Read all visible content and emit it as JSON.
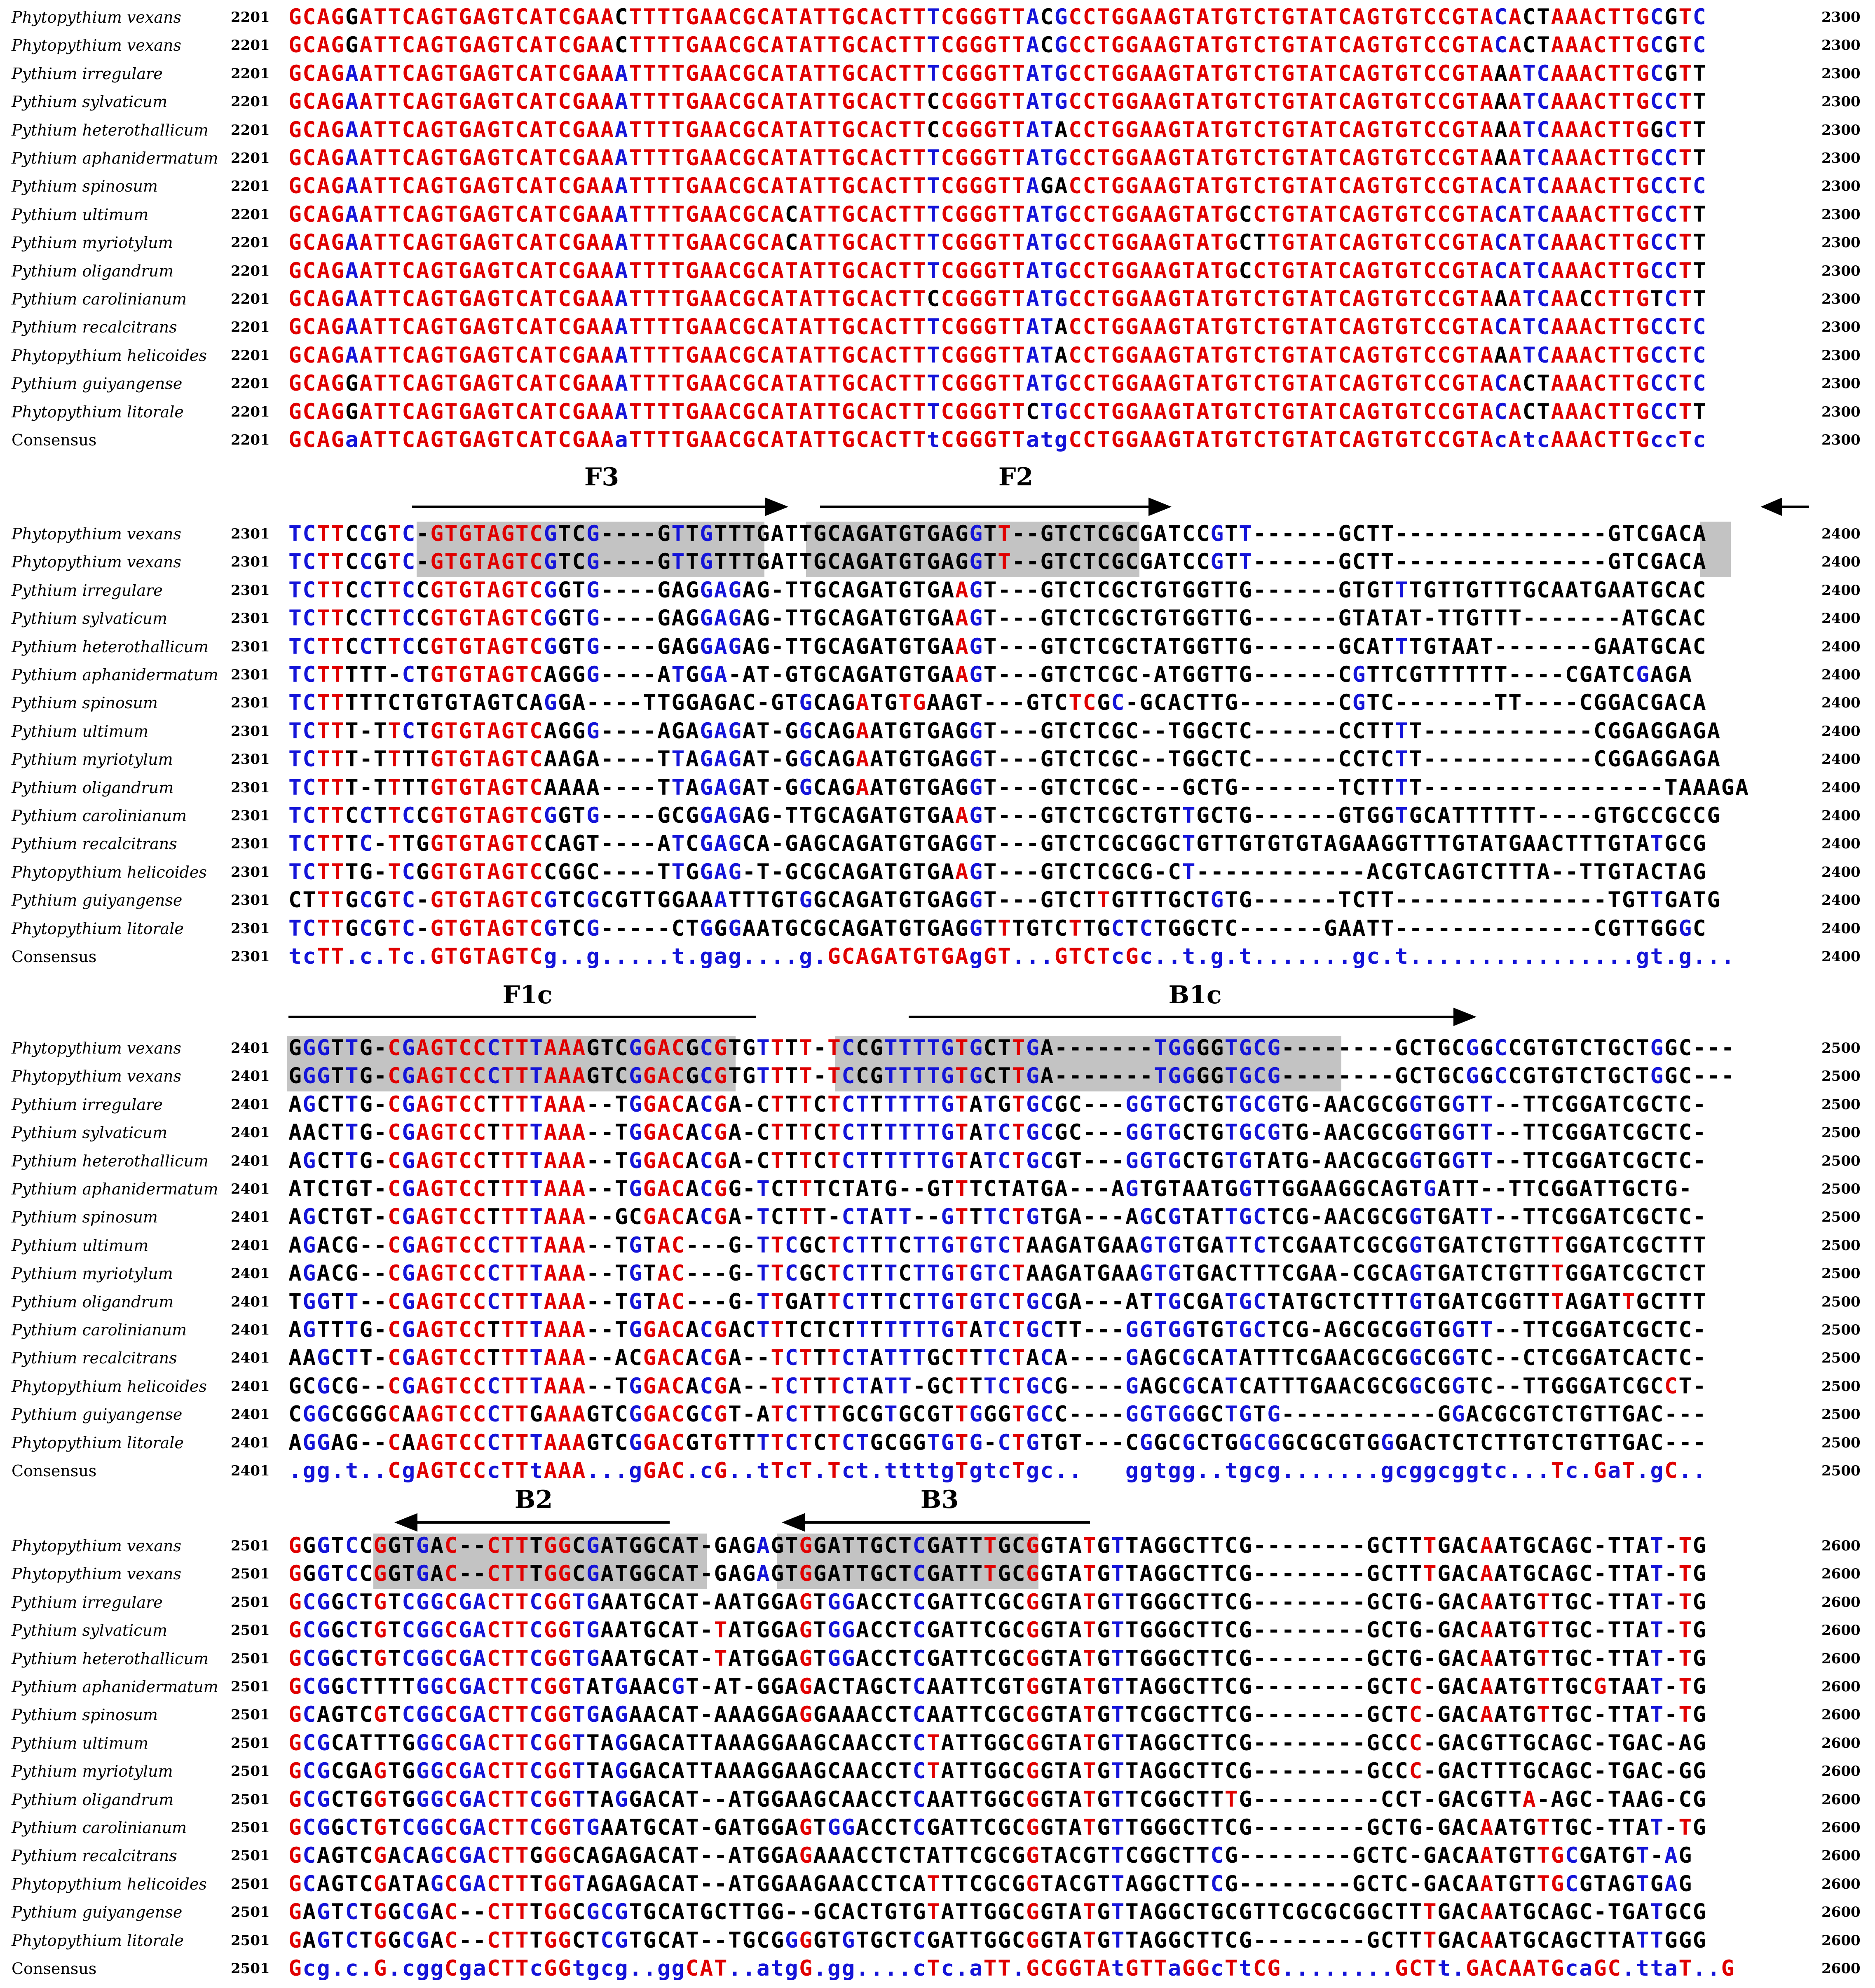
{
  "colors": {
    "red": "#e00000",
    "blue": "#1414d8",
    "black": "#000000",
    "highlight": "#c3c3c3"
  },
  "blocks": [
    {
      "start": "2201",
      "end": "2300",
      "rows": [
        {
          "name": "Phytopythium vexans",
          "seq": "GCAGGATTCAGTGAGTCATCGAACTTTTGAACGCATATTGCACTTTCGGGTTACGCCTGGAAGTATGTCTGTATCAGTGTCCGTACACTAAACTTGCGTC"
        },
        {
          "name": "Phytopythium vexans",
          "seq": "GCAGGATTCAGTGAGTCATCGAACTTTTGAACGCATATTGCACTTTCGGGTTACGCCTGGAAGTATGTCTGTATCAGTGTCCGTACACTAAACTTGCGTC"
        },
        {
          "name": "Pythium irregulare",
          "seq": "GCAGAATTCAGTGAGTCATCGAAATTTTGAACGCATATTGCACTTTCGGGTTATGCCTGGAAGTATGTCTGTATCAGTGTCCGTAAATCAAACTTGCGTT"
        },
        {
          "name": "Pythium sylvaticum",
          "seq": "GCAGAATTCAGTGAGTCATCGAAATTTTGAACGCATATTGCACTTCCGGGTTATGCCTGGAAGTATGTCTGTATCAGTGTCCGTAAATCAAACTTGCCTT"
        },
        {
          "name": "Pythium heterothallicum",
          "seq": "GCAGAATTCAGTGAGTCATCGAAATTTTGAACGCATATTGCACTTCCGGGTTATACCTGGAAGTATGTCTGTATCAGTGTCCGTAAATCAAACTTGGCTT"
        },
        {
          "name": "Pythium aphanidermatum",
          "seq": "GCAGAATTCAGTGAGTCATCGAAATTTTGAACGCATATTGCACTTTCGGGTTATGCCTGGAAGTATGTCTGTATCAGTGTCCGTAAATCAAACTTGCCTT"
        },
        {
          "name": "Pythium spinosum",
          "seq": "GCAGAATTCAGTGAGTCATCGAAATTTTGAACGCATATTGCACTTTCGGGTTAGACCTGGAAGTATGTCTGTATCAGTGTCCGTACATCAAACTTGCCTC"
        },
        {
          "name": "Pythium ultimum",
          "seq": "GCAGAATTCAGTGAGTCATCGAAATTTTGAACGCACATTGCACTTTCGGGTTATGCCTGGAAGTATGCCTGTATCAGTGTCCGTACATCAAACTTGCCTT"
        },
        {
          "name": "Pythium myriotylum",
          "seq": "GCAGAATTCAGTGAGTCATCGAAATTTTGAACGCACATTGCACTTTCGGGTTATGCCTGGAAGTATGCTTGTATCAGTGTCCGTACATCAAACTTGCCTT"
        },
        {
          "name": "Pythium oligandrum",
          "seq": "GCAGAATTCAGTGAGTCATCGAAATTTTGAACGCATATTGCACTTTCGGGTTATGCCTGGAAGTATGCCTGTATCAGTGTCCGTACATCAAACTTGCCTT"
        },
        {
          "name": "Pythium carolinianum",
          "seq": "GCAGAATTCAGTGAGTCATCGAAATTTTGAACGCATATTGCACTTCCGGGTTATGCCTGGAAGTATGTCTGTATCAGTGTCCGTAAATCAACCTTGTCTT"
        },
        {
          "name": "Pythium recalcitrans",
          "seq": "GCAGAATTCAGTGAGTCATCGAAATTTTGAACGCATATTGCACTTTCGGGTTATACCTGGAAGTATGTCTGTATCAGTGTCCGTACATCAAACTTGCCTC"
        },
        {
          "name": "Phytopythium helicoides",
          "seq": "GCAGAATTCAGTGAGTCATCGAAATTTTGAACGCATATTGCACTTTCGGGTTATACCTGGAAGTATGTCTGTATCAGTGTCCGTAAATCAAACTTGCCTC"
        },
        {
          "name": "Pythium guiyangense",
          "seq": "GCAGGATTCAGTGAGTCATCGAAATTTTGAACGCATATTGCACTTTCGGGTTATGCCTGGAAGTATGTCTGTATCAGTGTCCGTACACTAAACTTGCCTC"
        },
        {
          "name": "Phytopythium litorale",
          "seq": "GCAGGATTCAGTGAGTCATCGAAATTTTGAACGCATATTGCACTTTCGGGTTCTGCCTGGAAGTATGTCTGTATCAGTGTCCGTACACTAAACTTGCCTT"
        },
        {
          "name": "Consensus",
          "seq": "GCAGaATTCAGTGAGTCATCGAAaTTTTGAACGCATATTGCACTTtCGGGTTatgCCTGGAAGTATGTCTGTATCAGTGTCCGTAcAtcAAACTTGccTc"
        }
      ]
    },
    {
      "start": "2301",
      "end": "2400",
      "rows": [
        {
          "name": "Phytopythium vexans",
          "seq": "TCTTCCGTC-GTGTAGTCGTCG----GTTGTTTGATTGCAGATGTGAGGTT--GTCTCGCGATCCGTT------GCTT---------------GTCGACA"
        },
        {
          "name": "Phytopythium vexans",
          "seq": "TCTTCCGTC-GTGTAGTCGTCG----GTTGTTTGATTGCAGATGTGAGGTT--GTCTCGCGATCCGTT------GCTT---------------GTCGACA"
        },
        {
          "name": "Pythium irregulare",
          "seq": "TCTTCCTTCCGTGTAGTCGGTG----GAGGAGAG-TTGCAGATGTGAAGT---GTCTCGCTGTGGTTG------GTGTTTGTTGTTTGCAATGAATGCAC"
        },
        {
          "name": "Pythium sylvaticum",
          "seq": "TCTTCCTTCCGTGTAGTCGGTG----GAGGAGAG-TTGCAGATGTGAAGT---GTCTCGCTGTGGTTG------GTATAT-TTGTTT-------ATGCAC"
        },
        {
          "name": "Pythium heterothallicum",
          "seq": "TCTTCCTTCCGTGTAGTCGGTG----GAGGAGAG-TTGCAGATGTGAAGT---GTCTCGCTATGGTTG------GCATTTGTAAT-------GAATGCAC"
        },
        {
          "name": "Pythium aphanidermatum",
          "seq": "TCTTTTT-CTGTGTAGTCAGGG----ATGGA-AT-GTGCAGATGTGAAGT---GTCTCGC-ATGGTTG------CGTTCGTTTTTT----CGATCGAGA"
        },
        {
          "name": "Pythium spinosum",
          "seq": "TCTTTTTCTGTGTAGTCAGGA----TTGGAGAC-GTGCAGATGTGAAGT---GTCTCGC-GCACTTG-------CGTC-------TT----CGGACGACA"
        },
        {
          "name": "Pythium ultimum",
          "seq": "TCTTT-TTCTGTGTAGTCAGGG----AGAGAGAT-GGCAGAATGTGAGGT---GTCTCGC--TGGCTC------CCTTTT------------CGGAGGAGA"
        },
        {
          "name": "Pythium myriotylum",
          "seq": "TCTTT-TTTTGTGTAGTCAAGA----TTAGAGAT-GGCAGAATGTGAGGT---GTCTCGC--TGGCTC------CCTCTT------------CGGAGGAGA"
        },
        {
          "name": "Pythium oligandrum",
          "seq": "TCTTT-TTTTGTGTAGTCAAAA----TTAGAGAT-GGCAGAATGTGAGGT---GTCTCGC---GCTG-------TCTTTT-----------------TAAAGA"
        },
        {
          "name": "Pythium carolinianum",
          "seq": "TCTTCCTTCCGTGTAGTCGGTG----GCGGAGAG-TTGCAGATGTGAAGT---GTCTCGCTGTTGCTG------GTGGTGCATTTTTT----GTGCCGCCG"
        },
        {
          "name": "Pythium recalcitrans",
          "seq": "TCTTTC-TTGGTGTAGTCCAGT----ATCGAGCA-GAGCAGATGTGAGGT---GTCTCGCGGCTGTTGTGTGTAGAAGGTTTGTATGAACTTTGTATGCG"
        },
        {
          "name": "Phytopythium helicoides",
          "seq": "TCTTTG-TCGGTGTAGTCCGGC----TTGGAG-T-GCGCAGATGTGAAGT---GTCTCGCG-CT------------ACGTCAGTCTTTA--TTGTACTAG"
        },
        {
          "name": "Pythium guiyangense",
          "seq": "CTTTGCGTC-GTGTAGTCGTCGCGTTGGAAATTTGTGGCAGATGTGAGGT---GTCTTGTTTGCTGTG------TCTT---------------TGTTGATG"
        },
        {
          "name": "Phytopythium litorale",
          "seq": "TCTTGCGTC-GTGTAGTCGTCG-----CTGGGAATGCGCAGATGTGAGGTTTGTCTTGCTCTGGCTC------GAATT--------------CGTTGGGC"
        },
        {
          "name": "Consensus",
          "seq": "tcTT.c.Tc.GTGTAGTCg..g.....t.gag....g.GCAGATGTGAgGT...GTCTcGc..t.g.t.......gc.t................gt.g..."
        }
      ]
    },
    {
      "start": "2401",
      "end": "2500",
      "rows": [
        {
          "name": "Phytopythium vexans",
          "seq": "GGGTTG-CGAGTCCCTTTAAAGTCGGACGCGTGTTTT-TCCGTTTTGTGCTTGA-------TGGGGTGCG--------GCTGCGGCCGTGTCTGCTGGC---"
        },
        {
          "name": "Phytopythium vexans",
          "seq": "GGGTTG-CGAGTCCCTTTAAAGTCGGACGCGTGTTTT-TCCGTTTTGTGCTTGA-------TGGGGTGCG--------GCTGCGGCCGTGTCTGCTGGC---"
        },
        {
          "name": "Pythium irregulare",
          "seq": "AGCTTG-CGAGTCCTTTTAAA--TGGACACGA-CTTTCTCTTTTTTGTATGTGCGC---GGTGCTGTGCGTG-AACGCGGTGGTT--TTCGGATCGCTC-"
        },
        {
          "name": "Pythium sylvaticum",
          "seq": "AACTTG-CGAGTCCTTTTAAA--TGGACACGA-CTTTCTCTTTTTTGTATCTGCGC---GGTGCTGTGCGTG-AACGCGGTGGTT--TTCGGATCGCTC-"
        },
        {
          "name": "Pythium heterothallicum",
          "seq": "AGCTTG-CGAGTCCTTTTAAA--TGGACACGA-CTTTCTCTTTTTTGTATCTGCGT---GGTGCTGTGTATG-AACGCGGTGGTT--TTCGGATCGCTC-"
        },
        {
          "name": "Pythium aphanidermatum",
          "seq": "ATCTGT-CGAGTCCTTTTAAA--TGGACACGG-TCTTTCTATG--GTTTCTATGA---AGTGTAATGGTTGGAAGGCAGTGATT--TTCGGATTGCTG-"
        },
        {
          "name": "Pythium spinosum",
          "seq": "AGCTGT-CGAGTCCTTTTAAA--GCGACACGA-TCTTT-CTATT--GTTTCTGTGA---AGCGTATTGCTCG-AACGCGGTGATT--TTCGGATCGCTC-"
        },
        {
          "name": "Pythium ultimum",
          "seq": "AGACG--CGAGTCCCTTTAAA--TGTAC---G-TTCGCTCTTTCTTGTGTCTAAGATGAAGTGTGATTCTCGAATCGCGGTGATCTGTTTGGATCGCTTT"
        },
        {
          "name": "Pythium myriotylum",
          "seq": "AGACG--CGAGTCCCTTTAAA--TGTAC---G-TTCGCTCTTTCTTGTGTCTAAGATGAAGTGTGACTTTCGAA-CGCAGTGATCTGTTTGGATCGCTCT"
        },
        {
          "name": "Pythium oligandrum",
          "seq": "TGGTT--CGAGTCCCTTTAAA--TGTAC---G-TTGATTCTTTCTTGTGTCTGCGA---ATTGCGATGCTATGCTCTTTGTGATCGGTTTAGATTGCTTT"
        },
        {
          "name": "Pythium carolinianum",
          "seq": "AGTTTG-CGAGTCCTTTTAAA--TGGACACGACTTTCTCTTTTTTTGTATCTGCTT---GGTGGTGTGCTCG-AGCGCGGTGGTT--TTCGGATCGCTC-"
        },
        {
          "name": "Pythium recalcitrans",
          "seq": "AAGCTT-CGAGTCCTTTTAAA--ACGACACGA--TCTTTCTATTTGCTTTCTACA----GAGCGCATATTTCGAACGCGGCGGTC--CTCGGATCACTC-"
        },
        {
          "name": "Phytopythium helicoides",
          "seq": "GCGCG--CGAGTCCCTTTAAA--TGGACACGA--TCTTTCTATT-GCTTTCTGCG----GAGCGCATCATTTGAACGCGGCGGTC--TTGGGATCGCCT-"
        },
        {
          "name": "Pythium guiyangense",
          "seq": "CGGCGGGCAAGTCCCTTGAAAGTCGGACGCGT-ATCTTTGCGTGCGTTGGGTGCC----GGTGGGCTGTG-----------GGACGCGTCTGTTGAC---"
        },
        {
          "name": "Phytopythium litorale",
          "seq": "AGGAG--CAAGTCCCTTTAAAGTCGGACGTGTTTTCTCTCTGCGGTGTG-CTGTGT---CGGCGCTGGCGGCGCGTGGGACTCTCTTGTCTGTTGAC---"
        },
        {
          "name": "Consensus",
          "seq": ".gg.t..CgAGTCCcTTtAAA...gGAC.cG..tTcT.Tct.ttttgTgtcTgc..   ggtgg..tgcg.......gcggcggtc...Tc.GaT.gC.."
        }
      ]
    },
    {
      "start": "2501",
      "end": "2600",
      "rows": [
        {
          "name": "Phytopythium vexans",
          "seq": "GGGTCCGGTGAC--CTTTGGCGATGGCAT-GAGAGTGGATTGCTCGATTTGCGGTATGTTAGGCTTCG--------GCTTTGACAATGCAGC-TTAT-TG"
        },
        {
          "name": "Phytopythium vexans",
          "seq": "GGGTCCGGTGAC--CTTTGGCGATGGCAT-GAGAGTGGATTGCTCGATTTGCGGTATGTTAGGCTTCG--------GCTTTGACAATGCAGC-TTAT-TG"
        },
        {
          "name": "Pythium irregulare",
          "seq": "GCGGCTGTCGGCGACTTCGGTGAATGCAT-AATGGAGTGGACCTCGATTCGCGGTATGTTGGGCTTCG--------GCTG-GACAATGTTGC-TTAT-TG"
        },
        {
          "name": "Pythium sylvaticum",
          "seq": "GCGGCTGTCGGCGACTTCGGTGAATGCAT-TATGGAGTGGACCTCGATTCGCGGTATGTTGGGCTTCG--------GCTG-GACAATGTTGC-TTAT-TG"
        },
        {
          "name": "Pythium heterothallicum",
          "seq": "GCGGCTGTCGGCGACTTCGGTGAATGCAT-TATGGAGTGGACCTCGATTCGCGGTATGTTGGGCTTCG--------GCTG-GACAATGTTGC-TTAT-TG"
        },
        {
          "name": "Pythium aphanidermatum",
          "seq": "GCGGCTTTTGGCGACTTCGGTATGAACGT-AT-GGAGACTAGCTCAATTCGTGGTATGTTAGGCTTCG--------GCTC-GACAATGTTGCGTAAT-TG"
        },
        {
          "name": "Pythium spinosum",
          "seq": "GCAGTCGTCGGCGACTTCGGTGAGAACAT-AAAGGAGGAAACCTCAATTCGCGGTATGTTCGGCTTCG--------GCTC-GACAATGTTGC-TTAT-TG"
        },
        {
          "name": "Pythium ultimum",
          "seq": "GCGCATTTGGGCGACTTCGGTTAGGACATTAAAGGAAGCAACCTCTATTGGCGGTATGTTAGGCTTCG--------GCCC-GACGTTGCAGC-TGAC-AG"
        },
        {
          "name": "Pythium myriotylum",
          "seq": "GCGCGAGTGGGCGACTTCGGTTAGGACATTAAAGGAAGCAACCTCTATTGGCGGTATGTTAGGCTTCG--------GCCC-GACTTTGCAGC-TGAC-GG"
        },
        {
          "name": "Pythium oligandrum",
          "seq": "GCGCTGGTGGGCGACTTCGGTTAGGACAT--ATGGAAGCAACCTCAATTGGCGGTATGTTCGGCTTTG---------CCT-GACGTTA-AGC-TAAG-CG"
        },
        {
          "name": "Pythium carolinianum",
          "seq": "GCGGCTGTCGGCGACTTCGGTGAATGCAT-GATGGAGTGGACCTCGATTCGCGGTATGTTGGGCTTCG--------GCTG-GACAATGTTGC-TTAT-TG"
        },
        {
          "name": "Pythium recalcitrans",
          "seq": "GCAGTCGACAGCGACTTGGGCAGAGACAT--ATGGAGAAACCTCTATTCGCGGTACGTTCGGCTTCG--------GCTC-GACAATGTTGCGATGT-AG"
        },
        {
          "name": "Phytopythium helicoides",
          "seq": "GCAGTCGATAGCGACTTTGGTAGAGACAT--ATGGAAGAACCTCATTTCGCGGTACGTTAGGCTTCG--------GCTC-GACAATGTTGCGTAGTGAG"
        },
        {
          "name": "Pythium guiyangense",
          "seq": "GAGTCTGGCGAC--CTTTGGCGCGTGCATGCTTGG--GCACTGTGTATTGGCGGTATGTTAGGCTGCGTTCGCGCGGCTTTGACAATGCAGC-TGATGCG"
        },
        {
          "name": "Phytopythium litorale",
          "seq": "GAGTCTGGCGAC--CTTTGGCTCGTGCAT--TGCGGGGTGTGCTCGATTGGCGGTATGTTAGGCTTCG--------GCTTTGACAATGCAGCTTATTGGG"
        },
        {
          "name": "Consensus",
          "seq": "Gcg.c.G.cggCgaCTTcGGtgcg..ggCAT..atgG.gg....cTc.aTT.GCGGTAtGTTaGGcTtCG........GCTt.GACAATGcaGC.ttaT..G"
        }
      ]
    }
  ],
  "primers": {
    "F3": "F3",
    "F2": "F2",
    "F1c": "F1c",
    "B1c": "B1c",
    "B2": "B2",
    "B3": "B3"
  }
}
